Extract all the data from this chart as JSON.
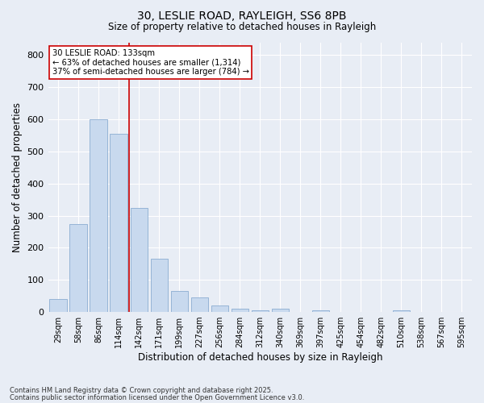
{
  "title_line1": "30, LESLIE ROAD, RAYLEIGH, SS6 8PB",
  "title_line2": "Size of property relative to detached houses in Rayleigh",
  "xlabel": "Distribution of detached houses by size in Rayleigh",
  "ylabel": "Number of detached properties",
  "categories": [
    "29sqm",
    "58sqm",
    "86sqm",
    "114sqm",
    "142sqm",
    "171sqm",
    "199sqm",
    "227sqm",
    "256sqm",
    "284sqm",
    "312sqm",
    "340sqm",
    "369sqm",
    "397sqm",
    "425sqm",
    "454sqm",
    "482sqm",
    "510sqm",
    "538sqm",
    "567sqm",
    "595sqm"
  ],
  "values": [
    40,
    275,
    600,
    555,
    325,
    165,
    65,
    45,
    20,
    10,
    5,
    10,
    0,
    5,
    0,
    0,
    0,
    5,
    0,
    0,
    0
  ],
  "bar_color": "#c8d9ee",
  "bar_edge_color": "#8badd1",
  "background_color": "#e8edf5",
  "grid_color": "#ffffff",
  "annotation_text_line1": "30 LESLIE ROAD: 133sqm",
  "annotation_text_line2": "← 63% of detached houses are smaller (1,314)",
  "annotation_text_line3": "37% of semi-detached houses are larger (784) →",
  "annotation_box_color": "#ffffff",
  "annotation_box_edge_color": "#cc0000",
  "annotation_line_color": "#cc0000",
  "ylim": [
    0,
    840
  ],
  "yticks": [
    0,
    100,
    200,
    300,
    400,
    500,
    600,
    700,
    800
  ],
  "footnote_line1": "Contains HM Land Registry data © Crown copyright and database right 2025.",
  "footnote_line2": "Contains public sector information licensed under the Open Government Licence v3.0."
}
